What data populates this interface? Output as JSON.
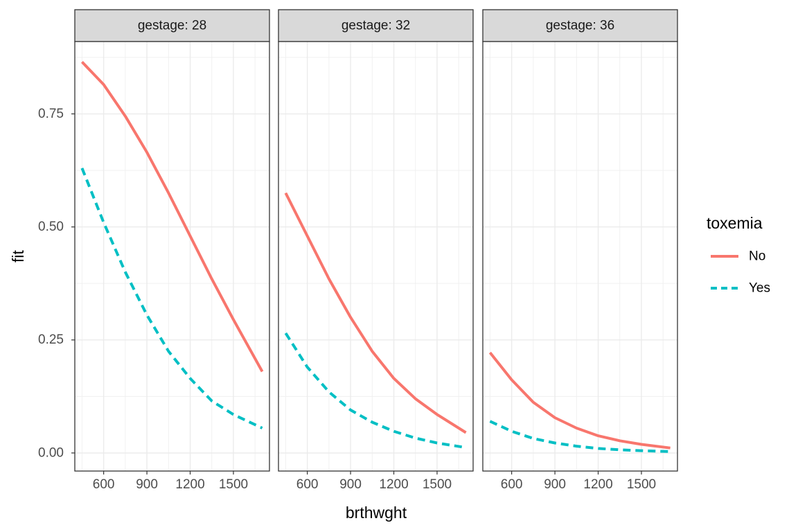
{
  "chart_data": {
    "type": "line",
    "xlabel": "brthwght",
    "ylabel": "fit",
    "xlim": [
      400,
      1750
    ],
    "ylim": [
      -0.04,
      0.91
    ],
    "x_ticks": [
      600,
      900,
      1200,
      1500
    ],
    "x_tick_labels": [
      "600",
      "900",
      "1200",
      "1500"
    ],
    "y_ticks": [
      0,
      0.25,
      0.5,
      0.75
    ],
    "y_tick_labels": [
      "0.00",
      "0.25",
      "0.50",
      "0.75"
    ],
    "grid": true,
    "legend": {
      "title": "toxemia",
      "placement": "right",
      "entries": [
        {
          "label": "No",
          "color": "#F8766D",
          "linetype": "solid"
        },
        {
          "label": "Yes",
          "color": "#00BFC4",
          "linetype": "dashed"
        }
      ]
    },
    "panels": [
      {
        "strip_label": "gestage: 28",
        "x": [
          450,
          600,
          750,
          900,
          1050,
          1200,
          1350,
          1500,
          1700
        ],
        "series": [
          {
            "name": "No",
            "y": [
              0.865,
              0.815,
              0.745,
              0.665,
              0.575,
              0.48,
              0.385,
              0.295,
              0.18
            ]
          },
          {
            "name": "Yes",
            "y": [
              0.63,
              0.51,
              0.4,
              0.305,
              0.225,
              0.165,
              0.115,
              0.085,
              0.055
            ]
          }
        ]
      },
      {
        "strip_label": "gestage: 32",
        "x": [
          450,
          600,
          750,
          900,
          1050,
          1200,
          1350,
          1500,
          1700
        ],
        "series": [
          {
            "name": "No",
            "y": [
              0.575,
              0.48,
              0.385,
              0.3,
              0.225,
              0.165,
              0.12,
              0.085,
              0.045
            ]
          },
          {
            "name": "Yes",
            "y": [
              0.265,
              0.19,
              0.135,
              0.095,
              0.068,
              0.048,
              0.033,
              0.022,
              0.012
            ]
          }
        ]
      },
      {
        "strip_label": "gestage: 36",
        "x": [
          450,
          600,
          750,
          900,
          1050,
          1200,
          1350,
          1500,
          1700
        ],
        "series": [
          {
            "name": "No",
            "y": [
              0.222,
              0.162,
              0.112,
              0.078,
              0.055,
              0.038,
              0.027,
              0.019,
              0.011
            ]
          },
          {
            "name": "Yes",
            "y": [
              0.07,
              0.048,
              0.032,
              0.022,
              0.015,
              0.01,
              0.007,
              0.005,
              0.003
            ]
          }
        ]
      }
    ]
  }
}
